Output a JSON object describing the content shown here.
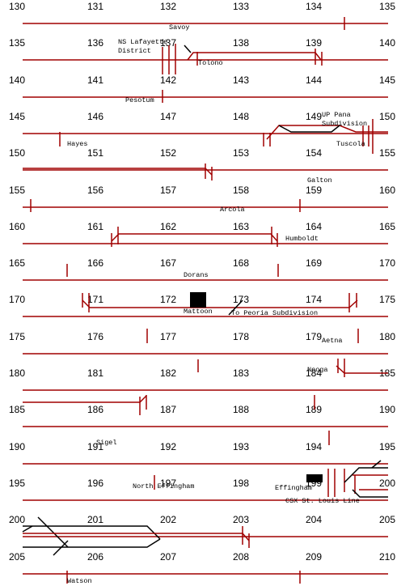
{
  "colors": {
    "track": "#a00000",
    "other": "#000000",
    "background": "#ffffff"
  },
  "rows": [
    {
      "start": "130",
      "mileposts": [
        "130",
        "131",
        "132",
        "133",
        "134",
        "135"
      ]
    },
    {
      "start": "135",
      "mileposts": [
        "135",
        "136",
        "137",
        "138",
        "139",
        "140"
      ]
    },
    {
      "start": "140",
      "mileposts": [
        "140",
        "141",
        "142",
        "143",
        "144",
        "145"
      ]
    },
    {
      "start": "145",
      "mileposts": [
        "145",
        "146",
        "147",
        "148",
        "149",
        "150"
      ]
    },
    {
      "start": "150",
      "mileposts": [
        "150",
        "151",
        "152",
        "153",
        "154",
        "155"
      ]
    },
    {
      "start": "155",
      "mileposts": [
        "155",
        "156",
        "157",
        "158",
        "159",
        "160"
      ]
    },
    {
      "start": "160",
      "mileposts": [
        "160",
        "161",
        "162",
        "163",
        "164",
        "165"
      ]
    },
    {
      "start": "165",
      "mileposts": [
        "165",
        "166",
        "167",
        "168",
        "169",
        "170"
      ]
    },
    {
      "start": "170",
      "mileposts": [
        "170",
        "171",
        "172",
        "173",
        "174",
        "175"
      ]
    },
    {
      "start": "175",
      "mileposts": [
        "175",
        "176",
        "177",
        "178",
        "179",
        "180"
      ]
    },
    {
      "start": "180",
      "mileposts": [
        "180",
        "181",
        "182",
        "183",
        "184",
        "185"
      ]
    },
    {
      "start": "185",
      "mileposts": [
        "185",
        "186",
        "187",
        "188",
        "189",
        "190"
      ]
    },
    {
      "start": "190",
      "mileposts": [
        "190",
        "191",
        "192",
        "193",
        "194",
        "195"
      ]
    },
    {
      "start": "195",
      "mileposts": [
        "195",
        "196",
        "197",
        "198",
        "199",
        "200"
      ]
    },
    {
      "start": "200",
      "mileposts": [
        "200",
        "201",
        "202",
        "203",
        "204",
        "205"
      ]
    },
    {
      "start": "205",
      "mileposts": [
        "205",
        "206",
        "207",
        "208",
        "209",
        "210"
      ]
    }
  ],
  "stations": {
    "savoy": "Savoy",
    "ns_lafayette": "NS Lafayette",
    "district": "District",
    "tolono": "Tolono",
    "pesotum": "Pesotum",
    "up_pana": "UP Pana",
    "subdivision": "Subdivision",
    "hayes": "Hayes",
    "tuscola": "Tuscola",
    "galton": "Galton",
    "arcola": "Arcola",
    "humboldt": "Humboldt",
    "dorans": "Dorans",
    "mattoon": "Mattoon",
    "to_peoria": "To Peoria Subdivision",
    "aetna": "Aetna",
    "neoga": "Neoga",
    "sigel": "Sigel",
    "north_effingham": "North Effingham",
    "effingham": "Effingham",
    "csx": "CSX St. Louis Line",
    "watson": "Watson"
  }
}
